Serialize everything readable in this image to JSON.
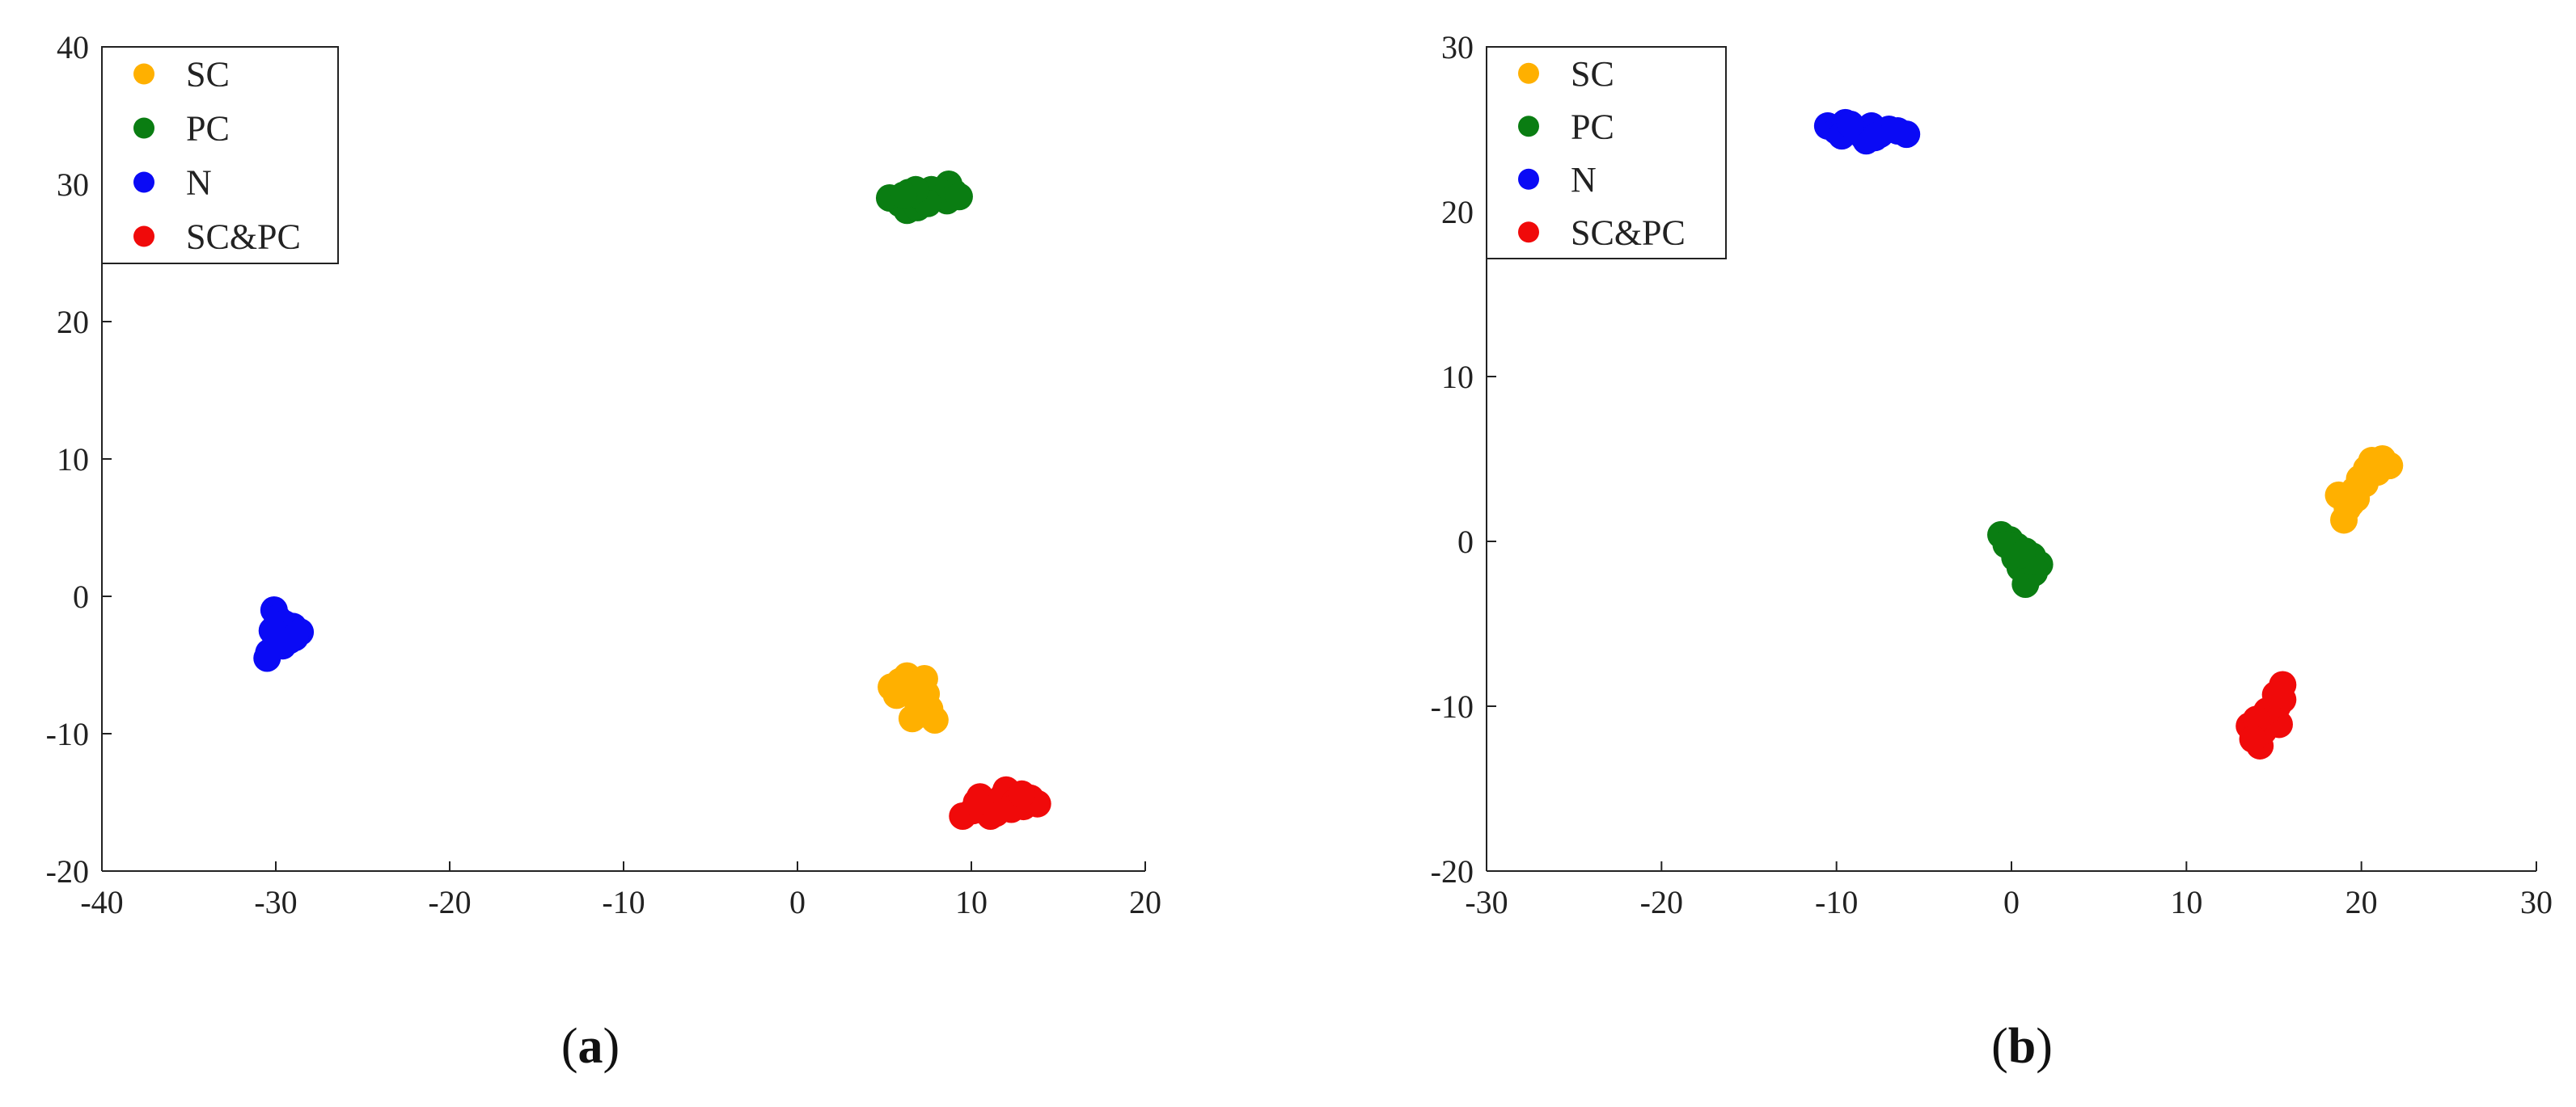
{
  "chart_data": [
    {
      "type": "scatter",
      "panel_label": "a",
      "xlim": [
        -40,
        20
      ],
      "ylim": [
        -20,
        40
      ],
      "xticks": [
        "-40",
        "-30",
        "-20",
        "-10",
        "0",
        "10",
        "20"
      ],
      "yticks": [
        "-20",
        "-10",
        "0",
        "10",
        "20",
        "30",
        "40"
      ],
      "legend_position": "top-left",
      "grid": false,
      "series": [
        {
          "name": "SC",
          "color": "#FFB000",
          "points": [
            [
              5.4,
              -6.6
            ],
            [
              5.9,
              -6.2
            ],
            [
              6.3,
              -5.8
            ],
            [
              6.8,
              -6.4
            ],
            [
              7.3,
              -6.0
            ],
            [
              6.1,
              -7.0
            ],
            [
              6.7,
              -7.3
            ],
            [
              7.2,
              -7.6
            ],
            [
              7.6,
              -8.2
            ],
            [
              7.0,
              -8.6
            ],
            [
              7.9,
              -9.0
            ],
            [
              6.6,
              -8.9
            ],
            [
              7.4,
              -7.1
            ],
            [
              6.0,
              -6.8
            ],
            [
              5.7,
              -7.2
            ]
          ]
        },
        {
          "name": "PC",
          "color": "#0A7D12",
          "points": [
            [
              5.3,
              29.0
            ],
            [
              5.9,
              28.6
            ],
            [
              6.4,
              29.4
            ],
            [
              6.3,
              28.1
            ],
            [
              6.9,
              28.3
            ],
            [
              7.2,
              29.0
            ],
            [
              7.7,
              29.6
            ],
            [
              8.2,
              29.2
            ],
            [
              8.7,
              30.0
            ],
            [
              9.0,
              29.4
            ],
            [
              8.6,
              28.8
            ],
            [
              7.5,
              28.6
            ],
            [
              6.8,
              29.6
            ],
            [
              6.1,
              29.2
            ],
            [
              9.3,
              29.1
            ]
          ]
        },
        {
          "name": "N",
          "color": "#0A0AF5",
          "points": [
            [
              -30.1,
              -1.0
            ],
            [
              -29.9,
              -1.6
            ],
            [
              -29.5,
              -2.0
            ],
            [
              -29.0,
              -2.2
            ],
            [
              -28.6,
              -2.6
            ],
            [
              -29.3,
              -2.8
            ],
            [
              -29.8,
              -3.0
            ],
            [
              -30.0,
              -3.4
            ],
            [
              -29.6,
              -3.6
            ],
            [
              -30.4,
              -4.1
            ],
            [
              -30.5,
              -4.5
            ],
            [
              -29.2,
              -3.2
            ],
            [
              -28.9,
              -3.0
            ],
            [
              -30.2,
              -2.5
            ]
          ]
        },
        {
          "name": "SC&PC",
          "color": "#F00A0A",
          "points": [
            [
              9.5,
              -16.0
            ],
            [
              10.1,
              -15.6
            ],
            [
              10.5,
              -14.6
            ],
            [
              10.9,
              -15.3
            ],
            [
              11.4,
              -15.8
            ],
            [
              11.8,
              -14.6
            ],
            [
              12.0,
              -14.1
            ],
            [
              12.5,
              -15.0
            ],
            [
              13.0,
              -15.3
            ],
            [
              13.4,
              -14.7
            ],
            [
              13.8,
              -15.1
            ],
            [
              12.3,
              -15.5
            ],
            [
              11.1,
              -16.0
            ],
            [
              10.3,
              -15.0
            ],
            [
              12.9,
              -14.4
            ]
          ]
        }
      ]
    },
    {
      "type": "scatter",
      "panel_label": "b",
      "xlim": [
        -30,
        30
      ],
      "ylim": [
        -20,
        30
      ],
      "xticks": [
        "-30",
        "-20",
        "-10",
        "0",
        "10",
        "20",
        "30"
      ],
      "yticks": [
        "-20",
        "-10",
        "0",
        "10",
        "20",
        "30"
      ],
      "legend_position": "top-left",
      "grid": false,
      "series": [
        {
          "name": "SC",
          "color": "#FFB000",
          "points": [
            [
              18.7,
              2.8
            ],
            [
              19.0,
              1.3
            ],
            [
              19.4,
              2.3
            ],
            [
              19.6,
              3.1
            ],
            [
              19.9,
              3.8
            ],
            [
              20.3,
              4.4
            ],
            [
              20.6,
              4.9
            ],
            [
              21.2,
              5.0
            ],
            [
              21.6,
              4.6
            ],
            [
              20.2,
              3.5
            ],
            [
              19.2,
              2.0
            ],
            [
              20.9,
              4.2
            ],
            [
              19.7,
              2.6
            ],
            [
              21.0,
              4.7
            ]
          ]
        },
        {
          "name": "PC",
          "color": "#0A7D12",
          "points": [
            [
              -0.6,
              0.4
            ],
            [
              -0.1,
              0.1
            ],
            [
              0.3,
              -0.3
            ],
            [
              0.8,
              -0.6
            ],
            [
              1.2,
              -0.9
            ],
            [
              1.6,
              -1.4
            ],
            [
              1.3,
              -1.9
            ],
            [
              0.9,
              -2.3
            ],
            [
              0.8,
              -2.6
            ],
            [
              0.5,
              -1.6
            ],
            [
              0.2,
              -1.0
            ],
            [
              1.1,
              -1.2
            ],
            [
              -0.3,
              -0.2
            ],
            [
              0.6,
              -0.8
            ]
          ]
        },
        {
          "name": "N",
          "color": "#0A0AF5",
          "points": [
            [
              -10.5,
              25.2
            ],
            [
              -10.0,
              24.9
            ],
            [
              -9.5,
              25.4
            ],
            [
              -9.0,
              25.0
            ],
            [
              -8.5,
              24.6
            ],
            [
              -8.0,
              25.2
            ],
            [
              -7.5,
              24.7
            ],
            [
              -7.0,
              25.0
            ],
            [
              -6.5,
              24.9
            ],
            [
              -6.0,
              24.7
            ],
            [
              -9.7,
              24.6
            ],
            [
              -8.3,
              24.3
            ],
            [
              -7.8,
              24.5
            ],
            [
              -9.2,
              25.3
            ]
          ]
        },
        {
          "name": "SC&PC",
          "color": "#F00A0A",
          "points": [
            [
              13.6,
              -11.2
            ],
            [
              13.9,
              -11.9
            ],
            [
              14.2,
              -12.4
            ],
            [
              14.4,
              -11.5
            ],
            [
              14.7,
              -11.0
            ],
            [
              15.0,
              -10.6
            ],
            [
              15.2,
              -10.0
            ],
            [
              15.5,
              -9.6
            ],
            [
              15.5,
              -8.7
            ],
            [
              15.3,
              -11.1
            ],
            [
              14.6,
              -10.3
            ],
            [
              14.0,
              -10.8
            ],
            [
              13.8,
              -12.0
            ],
            [
              15.1,
              -9.3
            ]
          ]
        }
      ]
    }
  ]
}
